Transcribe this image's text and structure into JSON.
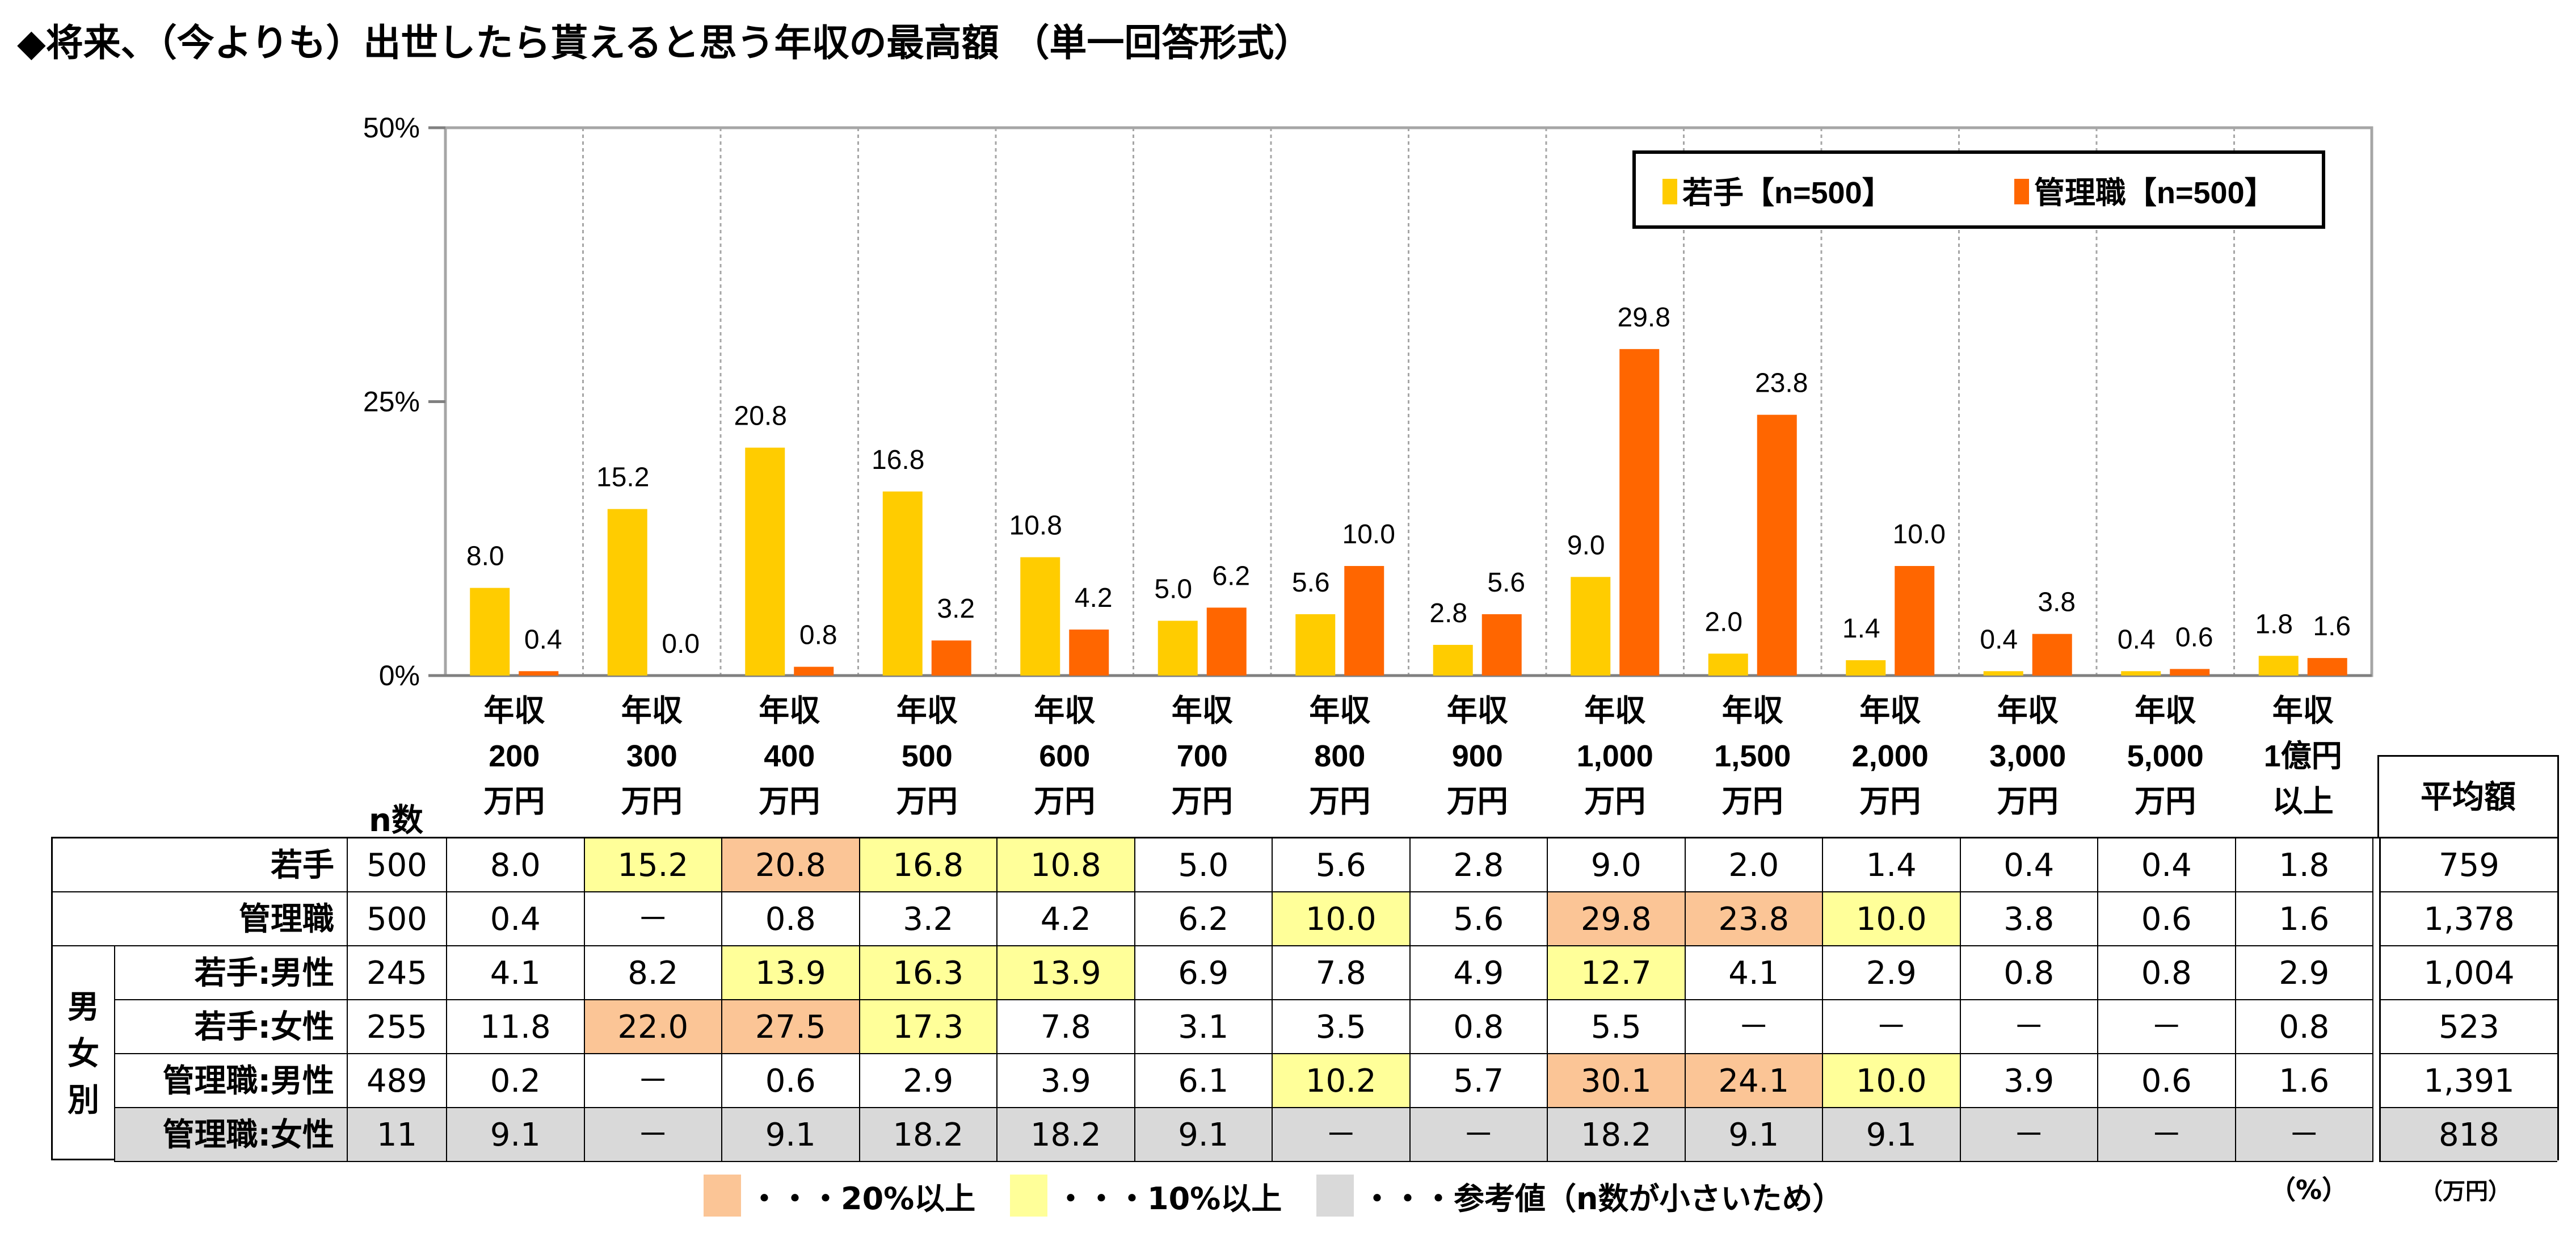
{
  "title": "◆将来、（今よりも）出世したら貰えると思う年収の最高額 （単一回答形式）",
  "colors": {
    "young": "#ffcc00",
    "manager": "#ff6600",
    "hi20": "#fbc596",
    "hi10": "#ffff99",
    "ref": "#d9d9d9"
  },
  "chart_data": {
    "type": "bar",
    "y_ticks": [
      "50%",
      "25%",
      "0%"
    ],
    "ylim": [
      0,
      50
    ],
    "categories": [
      [
        "年収",
        "200",
        "万円"
      ],
      [
        "年収",
        "300",
        "万円"
      ],
      [
        "年収",
        "400",
        "万円"
      ],
      [
        "年収",
        "500",
        "万円"
      ],
      [
        "年収",
        "600",
        "万円"
      ],
      [
        "年収",
        "700",
        "万円"
      ],
      [
        "年収",
        "800",
        "万円"
      ],
      [
        "年収",
        "900",
        "万円"
      ],
      [
        "年収",
        "1,000",
        "万円"
      ],
      [
        "年収",
        "1,500",
        "万円"
      ],
      [
        "年収",
        "2,000",
        "万円"
      ],
      [
        "年収",
        "3,000",
        "万円"
      ],
      [
        "年収",
        "5,000",
        "万円"
      ],
      [
        "年収",
        "1億円",
        "以上"
      ]
    ],
    "series": [
      {
        "name": "若手【n=500】",
        "values": [
          8.0,
          15.2,
          20.8,
          16.8,
          10.8,
          5.0,
          5.6,
          2.8,
          9.0,
          2.0,
          1.4,
          0.4,
          0.4,
          1.8
        ],
        "labels": [
          "8.0",
          "15.2",
          "20.8",
          "16.8",
          "10.8",
          "5.0",
          "5.6",
          "2.8",
          "9.0",
          "2.0",
          "1.4",
          "0.4",
          "0.4",
          "1.8"
        ]
      },
      {
        "name": "管理職【n=500】",
        "values": [
          0.4,
          0.0,
          0.8,
          3.2,
          4.2,
          6.2,
          10.0,
          5.6,
          29.8,
          23.8,
          10.0,
          3.8,
          0.6,
          1.6
        ],
        "labels": [
          "0.4",
          "0.0",
          "0.8",
          "3.2",
          "4.2",
          "6.2",
          "10.0",
          "5.6",
          "29.8",
          "23.8",
          "10.0",
          "3.8",
          "0.6",
          "1.6"
        ]
      }
    ],
    "legend_position": "top-right"
  },
  "table": {
    "n_label": "n数",
    "avg_label": "平均額",
    "group_label": [
      "男",
      "女",
      "別"
    ],
    "rows": [
      {
        "label": "若手",
        "n": "500",
        "avg": "759",
        "cells": [
          "8.0",
          "15.2",
          "20.8",
          "16.8",
          "10.8",
          "5.0",
          "5.6",
          "2.8",
          "9.0",
          "2.0",
          "1.4",
          "0.4",
          "0.4",
          "1.8"
        ],
        "styles": [
          "",
          "hi10",
          "hi20",
          "hi10",
          "hi10",
          "",
          "",
          "",
          "",
          "",
          "",
          "",
          "",
          ""
        ]
      },
      {
        "label": "管理職",
        "n": "500",
        "avg": "1,378",
        "cells": [
          "0.4",
          "－",
          "0.8",
          "3.2",
          "4.2",
          "6.2",
          "10.0",
          "5.6",
          "29.8",
          "23.8",
          "10.0",
          "3.8",
          "0.6",
          "1.6"
        ],
        "styles": [
          "",
          "",
          "",
          "",
          "",
          "",
          "hi10",
          "",
          "hi20",
          "hi20",
          "hi10",
          "",
          "",
          ""
        ]
      },
      {
        "label": "若手:男性",
        "n": "245",
        "avg": "1,004",
        "cells": [
          "4.1",
          "8.2",
          "13.9",
          "16.3",
          "13.9",
          "6.9",
          "7.8",
          "4.9",
          "12.7",
          "4.1",
          "2.9",
          "0.8",
          "0.8",
          "2.9"
        ],
        "styles": [
          "",
          "",
          "hi10",
          "hi10",
          "hi10",
          "",
          "",
          "",
          "hi10",
          "",
          "",
          "",
          "",
          ""
        ]
      },
      {
        "label": "若手:女性",
        "n": "255",
        "avg": "523",
        "cells": [
          "11.8",
          "22.0",
          "27.5",
          "17.3",
          "7.8",
          "3.1",
          "3.5",
          "0.8",
          "5.5",
          "－",
          "－",
          "－",
          "－",
          "0.8"
        ],
        "styles": [
          "",
          "hi20",
          "hi20",
          "hi10",
          "",
          "",
          "",
          "",
          "",
          "",
          "",
          "",
          "",
          ""
        ]
      },
      {
        "label": "管理職:男性",
        "n": "489",
        "avg": "1,391",
        "cells": [
          "0.2",
          "－",
          "0.6",
          "2.9",
          "3.9",
          "6.1",
          "10.2",
          "5.7",
          "30.1",
          "24.1",
          "10.0",
          "3.9",
          "0.6",
          "1.6"
        ],
        "styles": [
          "",
          "",
          "",
          "",
          "",
          "",
          "hi10",
          "",
          "hi20",
          "hi20",
          "hi10",
          "",
          "",
          ""
        ]
      },
      {
        "label": "管理職:女性",
        "n": "11",
        "avg": "818",
        "cells": [
          "9.1",
          "－",
          "9.1",
          "18.2",
          "18.2",
          "9.1",
          "－",
          "－",
          "18.2",
          "9.1",
          "9.1",
          "－",
          "－",
          "－"
        ],
        "styles": [
          "ref",
          "ref",
          "ref",
          "ref",
          "ref",
          "ref",
          "ref",
          "ref",
          "ref",
          "ref",
          "ref",
          "ref",
          "ref",
          "ref"
        ],
        "row_style": "ref"
      }
    ]
  },
  "footer": {
    "legend20": "・・・20%以上",
    "legend10": "・・・10%以上",
    "legendRef": "・・・参考値（n数が小さいため）",
    "pct": "（%）",
    "unit": "（万円）"
  }
}
